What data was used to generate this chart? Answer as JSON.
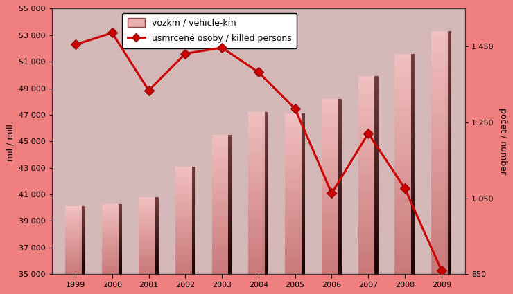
{
  "years": [
    1999,
    2000,
    2001,
    2002,
    2003,
    2004,
    2005,
    2006,
    2007,
    2008,
    2009
  ],
  "vozkm": [
    40100,
    40300,
    40800,
    43100,
    45500,
    47200,
    47100,
    48200,
    49900,
    51600,
    53300
  ],
  "killed": [
    1455,
    1486,
    1334,
    1431,
    1447,
    1382,
    1286,
    1063,
    1221,
    1076,
    860
  ],
  "bar_color_light": "#f0c0c0",
  "bar_color_mid": "#c87878",
  "bar_color_dark": "#5a1a1a",
  "bar_shadow_color": "#1a0000",
  "line_color": "#cc0000",
  "marker_color": "#cc0000",
  "background_outer": "#f08080",
  "background_inner": "#d4b8b8",
  "ylabel_left": "mil./ mill.",
  "ylabel_right": "počet / number",
  "legend_label_bar": "vozkm / vehicle-km",
  "legend_label_line": "usmrcené osoby / killed persons",
  "ylim_left": [
    35000,
    55000
  ],
  "ylim_right": [
    850,
    1550
  ],
  "yticks_left": [
    35000,
    37000,
    39000,
    41000,
    43000,
    45000,
    47000,
    49000,
    51000,
    53000,
    55000
  ],
  "yticks_right": [
    850,
    1050,
    1250,
    1450
  ],
  "ytick_labels_left": [
    "35 000",
    "37 000",
    "39 000",
    "41 000",
    "43 000",
    "45 000",
    "47 000",
    "49 000",
    "51 000",
    "53 000",
    "55 000"
  ],
  "ytick_labels_right": [
    "850",
    "1 050",
    "1 250",
    "1 450"
  ],
  "figsize": [
    7.4,
    4.25
  ],
  "dpi": 100
}
